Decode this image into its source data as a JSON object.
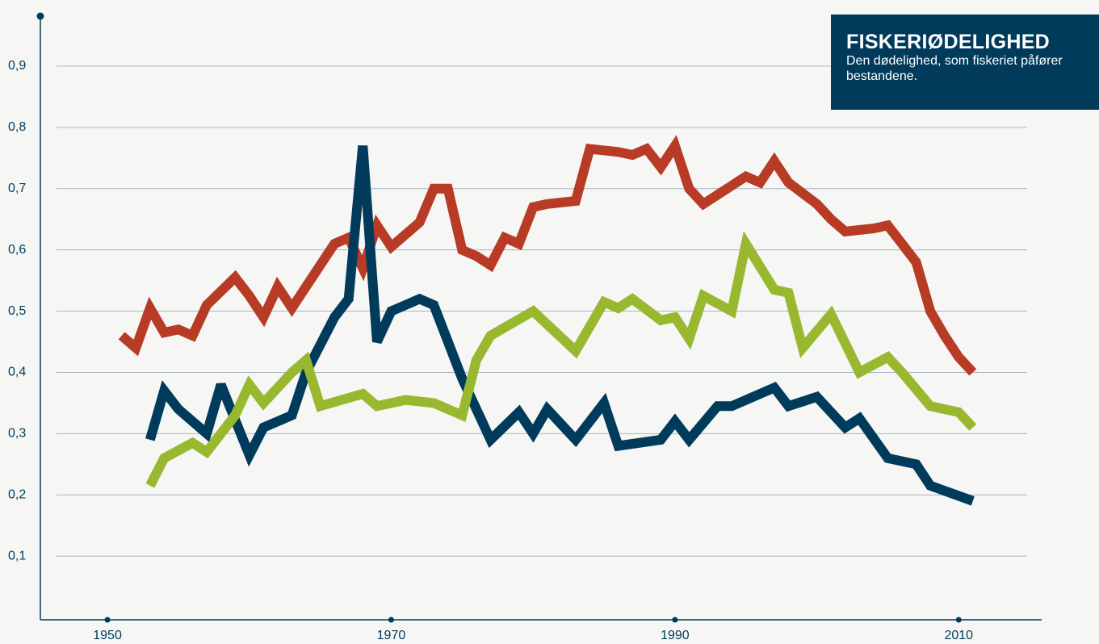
{
  "chart_data": {
    "type": "line",
    "title": "FISKERIØDELIGHED",
    "subtitle": "Den dødelighed, som fiskeriet påfører bestandene.",
    "xlim": [
      1945,
      2016
    ],
    "xticks": [
      1950,
      1970,
      1990,
      2010
    ],
    "ylim": [
      0,
      0.98
    ],
    "yticks": [
      {
        "value": 0.1,
        "label": "0,1"
      },
      {
        "value": 0.2,
        "label": "0,2"
      },
      {
        "value": 0.3,
        "label": "0,3"
      },
      {
        "value": 0.4,
        "label": "0,4"
      },
      {
        "value": 0.5,
        "label": "0,5"
      },
      {
        "value": 0.6,
        "label": "0,6"
      },
      {
        "value": 0.7,
        "label": "0,7"
      },
      {
        "value": 0.8,
        "label": "0,8"
      },
      {
        "value": 0.9,
        "label": "0,9"
      }
    ],
    "grid": true,
    "series": [
      {
        "color": "#b83b26",
        "x": [
          1951,
          1952,
          1953,
          1954,
          1955,
          1956,
          1957,
          1959,
          1960,
          1961,
          1962,
          1963,
          1964,
          1965,
          1966,
          1967,
          1968,
          1969,
          1970,
          1971,
          1972,
          1973,
          1974,
          1975,
          1976,
          1977,
          1978,
          1979,
          1980,
          1981,
          1983,
          1984,
          1986,
          1987,
          1988,
          1989,
          1990,
          1991,
          1992,
          1993,
          1994,
          1995,
          1996,
          1997,
          1998,
          2000,
          2001,
          2002,
          2004,
          2005,
          2006,
          2007,
          2008,
          2009,
          2010,
          2011
        ],
        "values": [
          0.46,
          0.44,
          0.505,
          0.465,
          0.47,
          0.46,
          0.51,
          0.555,
          0.525,
          0.49,
          0.54,
          0.505,
          0.54,
          0.575,
          0.61,
          0.62,
          0.57,
          0.64,
          0.605,
          0.625,
          0.645,
          0.7,
          0.7,
          0.6,
          0.59,
          0.575,
          0.62,
          0.61,
          0.67,
          0.675,
          0.68,
          0.765,
          0.76,
          0.755,
          0.765,
          0.735,
          0.77,
          0.7,
          0.675,
          0.69,
          0.705,
          0.72,
          0.71,
          0.745,
          0.71,
          0.675,
          0.65,
          0.63,
          0.635,
          0.64,
          0.61,
          0.58,
          0.5,
          0.46,
          0.425,
          0.4
        ]
      },
      {
        "color": "#003b5c",
        "x": [
          1953,
          1954,
          1955,
          1957,
          1958,
          1960,
          1961,
          1963,
          1964,
          1966,
          1967,
          1968,
          1969,
          1970,
          1972,
          1973,
          1975,
          1977,
          1979,
          1980,
          1981,
          1983,
          1985,
          1986,
          1989,
          1990,
          1991,
          1993,
          1994,
          1997,
          1998,
          2000,
          2002,
          2003,
          2005,
          2007,
          2008,
          2011
        ],
        "values": [
          0.29,
          0.37,
          0.34,
          0.3,
          0.38,
          0.265,
          0.31,
          0.33,
          0.4,
          0.49,
          0.52,
          0.77,
          0.45,
          0.5,
          0.52,
          0.51,
          0.39,
          0.29,
          0.335,
          0.3,
          0.34,
          0.29,
          0.35,
          0.28,
          0.29,
          0.32,
          0.29,
          0.345,
          0.345,
          0.375,
          0.345,
          0.36,
          0.31,
          0.325,
          0.26,
          0.25,
          0.215,
          0.19
        ]
      },
      {
        "color": "#98b82f",
        "x": [
          1953,
          1954,
          1956,
          1957,
          1959,
          1960,
          1961,
          1963,
          1964,
          1965,
          1968,
          1969,
          1971,
          1973,
          1975,
          1976,
          1977,
          1980,
          1983,
          1985,
          1986,
          1987,
          1989,
          1990,
          1991,
          1992,
          1994,
          1995,
          1997,
          1998,
          1999,
          2001,
          2003,
          2005,
          2006,
          2008,
          2010,
          2011
        ],
        "values": [
          0.215,
          0.26,
          0.285,
          0.27,
          0.33,
          0.38,
          0.35,
          0.4,
          0.42,
          0.345,
          0.365,
          0.345,
          0.355,
          0.35,
          0.33,
          0.42,
          0.46,
          0.5,
          0.435,
          0.515,
          0.505,
          0.52,
          0.485,
          0.49,
          0.455,
          0.525,
          0.5,
          0.61,
          0.535,
          0.53,
          0.44,
          0.495,
          0.4,
          0.425,
          0.4,
          0.345,
          0.335,
          0.31
        ]
      }
    ]
  }
}
